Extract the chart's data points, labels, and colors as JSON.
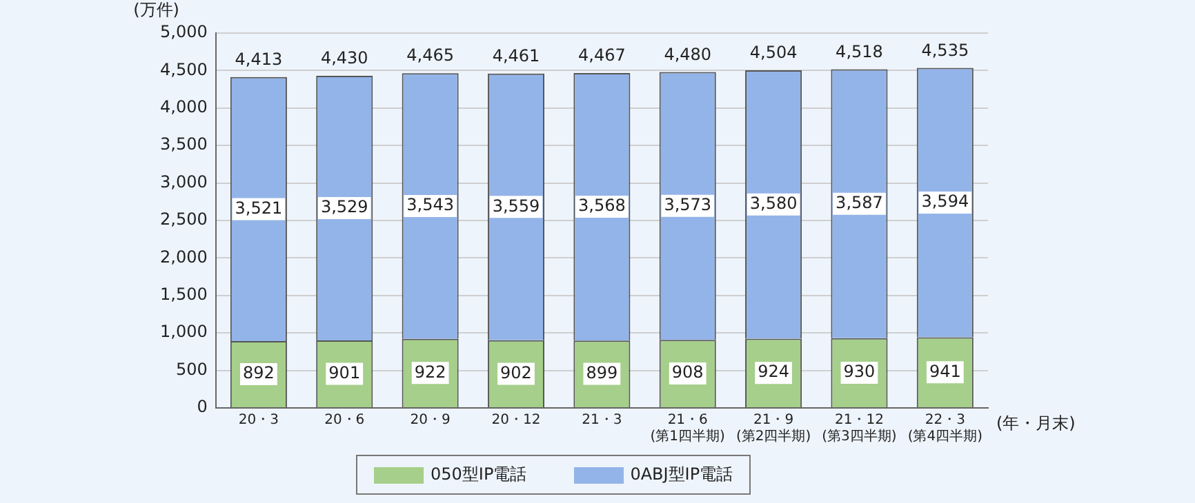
{
  "chart_data": {
    "type": "bar",
    "stacked": true,
    "ylabel": "(万件)",
    "xlabel": "(年・月末)",
    "categories": [
      "20・3",
      "20・6",
      "20・9",
      "20・12",
      "21・3",
      "21・6\n(第1四半期)",
      "21・9\n(第2四半期)",
      "21・12\n(第3四半期)",
      "22・3\n(第4四半期)"
    ],
    "series": [
      {
        "name": "050型IP電話",
        "color": "#a5cf8a",
        "values": [
          892,
          901,
          922,
          902,
          899,
          908,
          924,
          930,
          941
        ]
      },
      {
        "name": "0ABJ型IP電話",
        "color": "#93b4e8",
        "values": [
          3521,
          3529,
          3543,
          3559,
          3568,
          3573,
          3580,
          3587,
          3594
        ],
        "value_labels": [
          "3,521",
          "3,529",
          "3,543",
          "3,559",
          "3,568",
          "3,573",
          "3,580",
          "3,587",
          "3,594"
        ]
      }
    ],
    "totals": [
      "4,413",
      "4,430",
      "4,465",
      "4,461",
      "4,467",
      "4,480",
      "4,504",
      "4,518",
      "4,535"
    ],
    "ylim": [
      0,
      5000
    ],
    "yticks": [
      0,
      500,
      {
        "value": 1000,
        "label": "1,000"
      },
      {
        "value": 1500,
        "label": "1,500"
      },
      {
        "value": 2000,
        "label": "2,000"
      },
      {
        "value": 2500,
        "label": "2,500"
      },
      {
        "value": 3000,
        "label": "3,000"
      },
      {
        "value": 3500,
        "label": "3,500"
      },
      {
        "value": 4000,
        "label": "4,000"
      },
      {
        "value": 4500,
        "label": "4,500"
      },
      {
        "value": 5000,
        "label": "5,000"
      }
    ],
    "grid": "y",
    "legend": "bottom",
    "data_labels": true
  }
}
